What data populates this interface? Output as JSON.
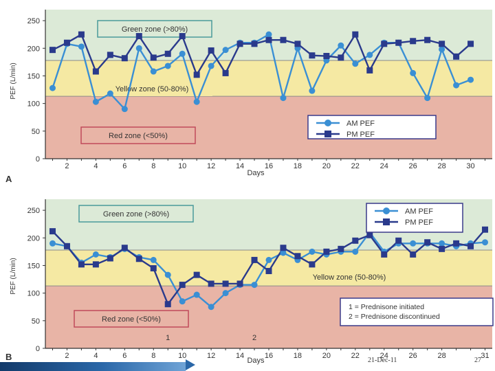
{
  "chart_data": [
    {
      "type": "line",
      "panel_label": "A",
      "xlabel": "Days",
      "ylabel": "PEF (L/min)",
      "xlim": [
        0.5,
        31.5
      ],
      "ylim": [
        0,
        270
      ],
      "xticks": [
        2,
        4,
        6,
        8,
        10,
        12,
        14,
        16,
        18,
        20,
        22,
        24,
        26,
        28,
        30
      ],
      "yticks": [
        0,
        50,
        100,
        150,
        200,
        250
      ],
      "zones": [
        {
          "label": "Green zone (>80%)",
          "from": 178,
          "to": 270,
          "color": "#dcead7"
        },
        {
          "label": "Yellow zone (50-80%)",
          "from": 113,
          "to": 178,
          "color": "#f5e9a3"
        },
        {
          "label": "Red zone (<50%)",
          "from": 0,
          "to": 113,
          "color": "#e8b4a6"
        }
      ],
      "series": [
        {
          "name": "AM PEF",
          "color": "#3a8fd4",
          "marker": "circle",
          "x": [
            1,
            2,
            3,
            4,
            5,
            6,
            7,
            8,
            9,
            10,
            11,
            12,
            13,
            14,
            15,
            16,
            17,
            18,
            19,
            20,
            21,
            22,
            23,
            24,
            25,
            26,
            27,
            28,
            29,
            30
          ],
          "y": [
            128,
            208,
            203,
            103,
            118,
            90,
            200,
            158,
            168,
            190,
            103,
            168,
            197,
            210,
            210,
            225,
            110,
            200,
            123,
            178,
            205,
            172,
            188,
            210,
            210,
            155,
            110,
            198,
            133,
            143
          ]
        },
        {
          "name": "PM PEF",
          "color": "#2a3a8c",
          "marker": "square",
          "x": [
            1,
            2,
            3,
            4,
            5,
            6,
            7,
            8,
            9,
            10,
            11,
            12,
            13,
            14,
            15,
            16,
            17,
            18,
            19,
            20,
            21,
            22,
            23,
            24,
            25,
            26,
            27,
            28,
            29,
            30
          ],
          "y": [
            197,
            210,
            225,
            158,
            188,
            182,
            222,
            183,
            190,
            222,
            152,
            196,
            155,
            208,
            208,
            215,
            215,
            208,
            187,
            186,
            183,
            225,
            160,
            208,
            210,
            213,
            215,
            208,
            185,
            208
          ]
        }
      ]
    },
    {
      "type": "line",
      "panel_label": "B",
      "xlabel": "Days",
      "ylabel": "PEF (L/min)",
      "xlim": [
        0.5,
        31.5
      ],
      "ylim": [
        0,
        270
      ],
      "xticks": [
        2,
        4,
        6,
        8,
        10,
        12,
        14,
        16,
        18,
        20,
        22,
        24,
        26,
        28,
        31
      ],
      "yticks": [
        0,
        50,
        100,
        150,
        200,
        250
      ],
      "zones": [
        {
          "label": "Green zone (>80%)",
          "from": 178,
          "to": 270,
          "color": "#dcead7"
        },
        {
          "label": "Yellow zone (50-80%)",
          "from": 113,
          "to": 178,
          "color": "#f5e9a3"
        },
        {
          "label": "Red zone (<50%)",
          "from": 0,
          "to": 113,
          "color": "#e8b4a6"
        }
      ],
      "series": [
        {
          "name": "AM PEF",
          "color": "#3a8fd4",
          "marker": "circle",
          "x": [
            1,
            2,
            3,
            4,
            5,
            6,
            7,
            8,
            9,
            10,
            11,
            12,
            13,
            14,
            15,
            16,
            17,
            18,
            19,
            20,
            21,
            22,
            23,
            24,
            25,
            26,
            27,
            28,
            29,
            30,
            31
          ],
          "y": [
            190,
            185,
            155,
            170,
            165,
            180,
            165,
            160,
            133,
            85,
            97,
            75,
            100,
            115,
            115,
            160,
            173,
            160,
            175,
            170,
            175,
            175,
            210,
            175,
            190,
            190,
            190,
            190,
            185,
            190,
            192
          ]
        },
        {
          "name": "PM PEF",
          "color": "#2a3a8c",
          "marker": "square",
          "x": [
            1,
            2,
            3,
            4,
            5,
            6,
            7,
            8,
            9,
            10,
            11,
            12,
            13,
            14,
            15,
            16,
            17,
            18,
            19,
            20,
            21,
            22,
            23,
            24,
            25,
            26,
            27,
            28,
            29,
            30,
            31
          ],
          "y": [
            212,
            185,
            152,
            152,
            163,
            182,
            162,
            145,
            80,
            115,
            133,
            117,
            117,
            117,
            160,
            140,
            182,
            167,
            152,
            175,
            180,
            195,
            205,
            170,
            195,
            170,
            192,
            180,
            190,
            185,
            215
          ]
        }
      ],
      "annotations": [
        {
          "text": "1",
          "x": 9
        },
        {
          "text": "2",
          "x": 15
        }
      ],
      "note_lines": [
        "1 = Prednisone initiated",
        "2 = Prednisone discontinued"
      ]
    }
  ],
  "footer": {
    "date": "21-Dec-11",
    "page": "27"
  }
}
